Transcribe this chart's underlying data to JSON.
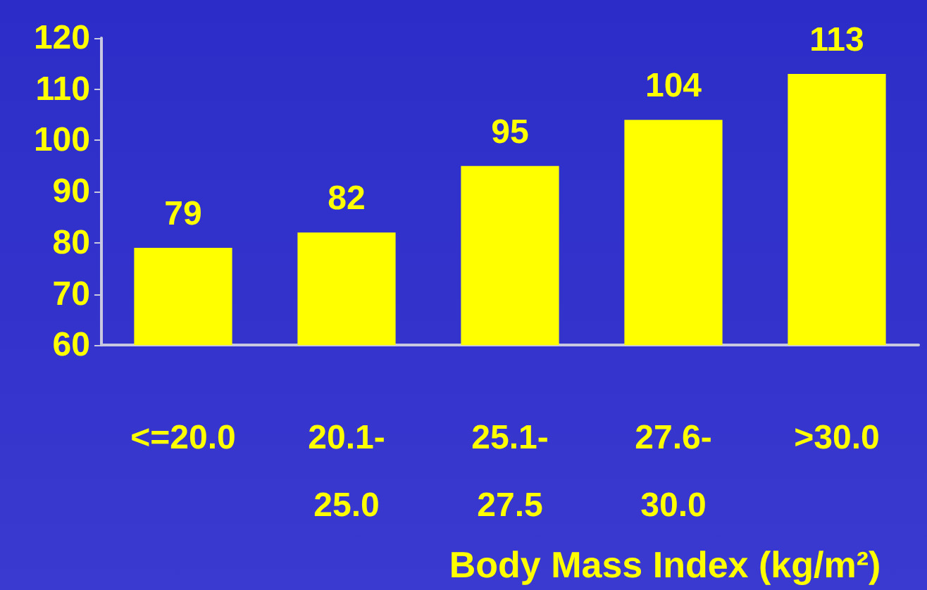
{
  "chart_data": {
    "type": "bar",
    "xlabel": "Body Mass Index (kg/m²)",
    "categories": [
      "<=20.0",
      "20.1-25.0",
      "25.1-27.5",
      "27.6-30.0",
      ">30.0"
    ],
    "values": [
      79,
      82,
      95,
      104,
      113
    ],
    "color": "#ffff00",
    "ylim": [
      60,
      120
    ],
    "yticks": [
      60,
      70,
      80,
      90,
      100,
      110,
      120
    ],
    "grid": false,
    "data_labels": true
  }
}
